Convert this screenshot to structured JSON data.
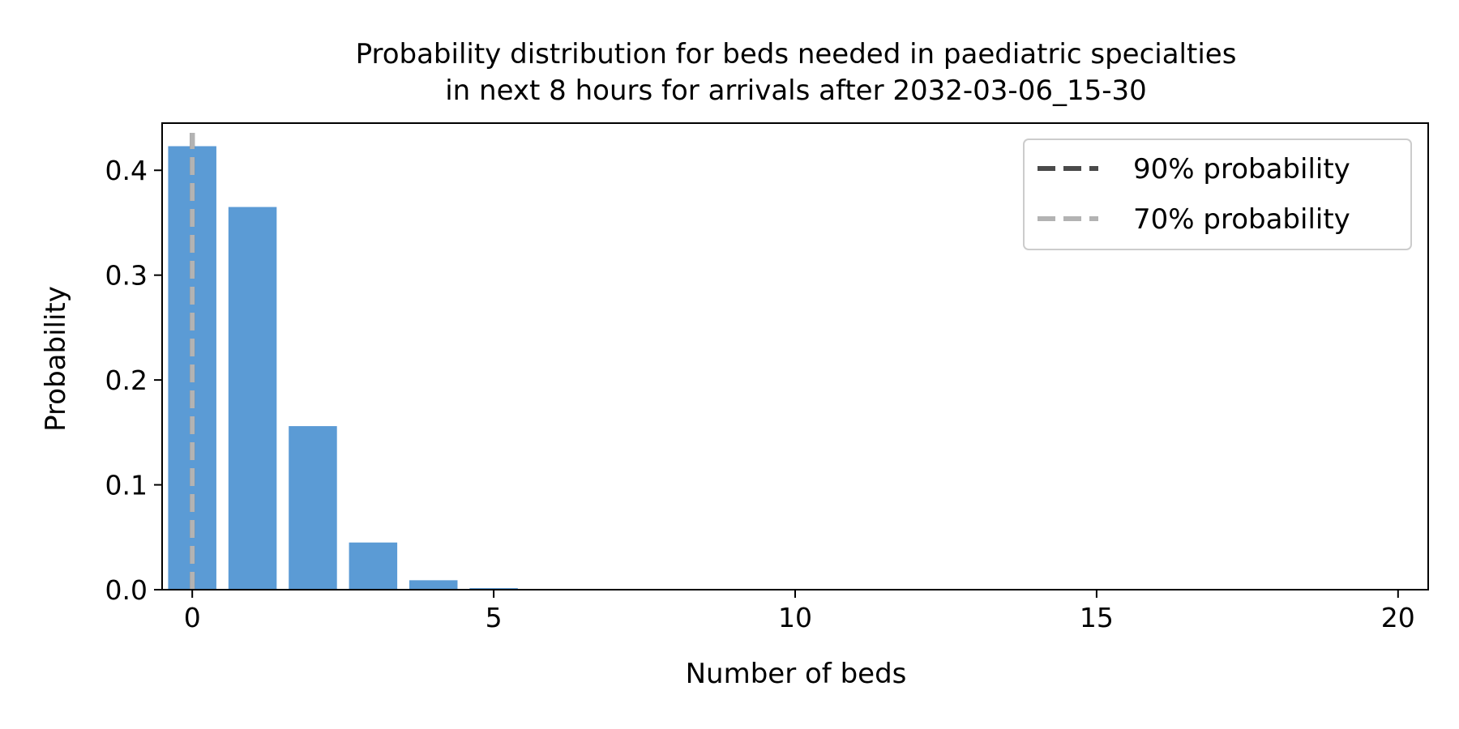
{
  "chart_data": {
    "type": "bar",
    "title_lines": [
      "Probability distribution for beds needed in paediatric specialties",
      "in next 8 hours for arrivals after 2032-03-06_15-30"
    ],
    "xlabel": "Number of beds",
    "ylabel": "Probability",
    "x": [
      0,
      1,
      2,
      3,
      4,
      5,
      6,
      7,
      8,
      9,
      10,
      11,
      12,
      13,
      14,
      15,
      16,
      17,
      18,
      19,
      20
    ],
    "values": [
      0.423,
      0.365,
      0.156,
      0.045,
      0.009,
      0.0015,
      0.0002,
      0,
      0,
      0,
      0,
      0,
      0,
      0,
      0,
      0,
      0,
      0,
      0,
      0,
      0
    ],
    "xlim": [
      -0.5,
      20.5
    ],
    "ylim": [
      0,
      0.445
    ],
    "xticks": [
      0,
      5,
      10,
      15,
      20
    ],
    "yticks": [
      0.0,
      0.1,
      0.2,
      0.3,
      0.4
    ],
    "xtick_labels": [
      "0",
      "5",
      "10",
      "15",
      "20"
    ],
    "ytick_labels": [
      "0.0",
      "0.1",
      "0.2",
      "0.3",
      "0.4"
    ],
    "bar_color": "#5b9bd5",
    "reference_lines": [
      {
        "label": "90% probability",
        "x": 0,
        "color": "#4a4a4a",
        "style": "dashed"
      },
      {
        "label": "70% probability",
        "x": 0,
        "color": "#b3b3b3",
        "style": "dashed"
      }
    ],
    "legend_position": "top-right",
    "grid": false
  }
}
